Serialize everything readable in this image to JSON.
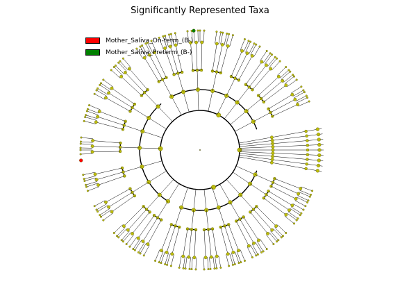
{
  "chart_data": {
    "type": "cladogram",
    "title": "Significantly Represented Taxa",
    "legend": [
      {
        "label": "Mother_Saliva_On-term_(B-)",
        "color": "#ff0000"
      },
      {
        "label": "Mother_Saliva_Preterm_(B-)",
        "color": "#008000"
      }
    ],
    "colors": {
      "node": "#bcbc0c",
      "node_edge": "#555500",
      "edge": "#000000"
    },
    "root": {
      "label": ""
    },
    "highlighted_nodes": [
      {
        "class": "Mother_Saliva_Preterm_(B-)",
        "angle_deg": 93
      },
      {
        "class": "Mother_Saliva_On-term_(B-)",
        "angle_deg": 185
      }
    ],
    "legend_placement": "top-left"
  }
}
